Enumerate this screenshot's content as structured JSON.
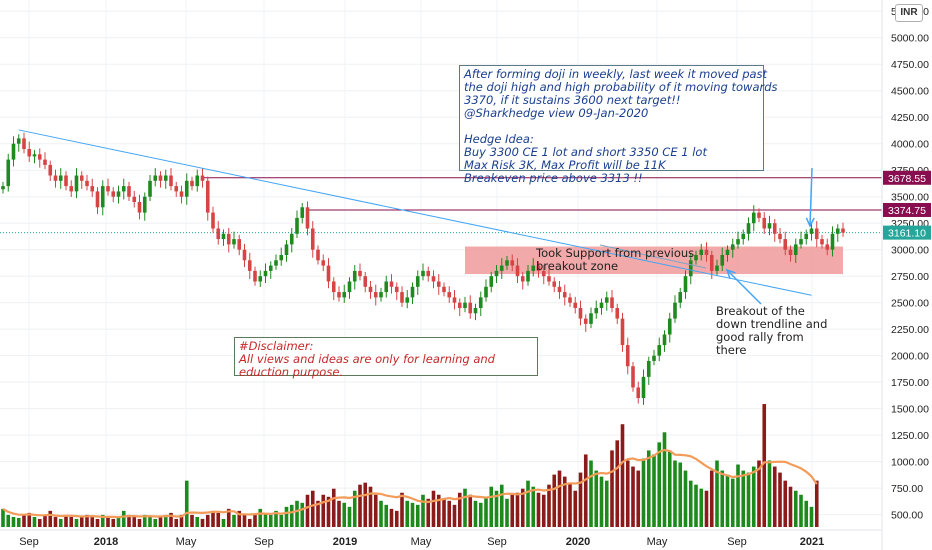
{
  "currency": "INR",
  "chart_data": {
    "type": "candlestick",
    "title": "",
    "xlabel": "",
    "ylabel": "",
    "ylim": [
      440,
      5290
    ],
    "volume_ylim": [
      500,
      1750
    ],
    "x_axis_labels": [
      "Sep",
      "2018",
      "May",
      "Sep",
      "2019",
      "May",
      "Sep",
      "2020",
      "May",
      "Sep",
      "2021"
    ],
    "y_ticks": [
      "500.00",
      "750.00",
      "1000.00",
      "1250.00",
      "1500.00",
      "1750.00",
      "2000.00",
      "2250.00",
      "2500.00",
      "2750.00",
      "3000.00",
      "3250.00",
      "3500.00",
      "3750.00",
      "4000.00",
      "4250.00",
      "4500.00",
      "4750.00",
      "5000.00",
      "5250.00"
    ],
    "price_labels": [
      {
        "value": 3678.55,
        "text": "3678.55",
        "color": "#880e4f"
      },
      {
        "value": 3374.75,
        "text": "3374.75",
        "color": "#880e4f"
      },
      {
        "value": 3161.1,
        "text": "3161.10",
        "color": "#26a69a"
      }
    ],
    "series": [
      {
        "name": "price",
        "close": [
          3600,
          3850,
          4000,
          4050,
          3950,
          3880,
          3900,
          3850,
          3800,
          3700,
          3650,
          3700,
          3600,
          3550,
          3700,
          3650,
          3600,
          3550,
          3400,
          3600,
          3550,
          3500,
          3550,
          3600,
          3500,
          3450,
          3350,
          3500,
          3650,
          3700,
          3650,
          3700,
          3600,
          3550,
          3500,
          3650,
          3600,
          3700,
          3650,
          3350,
          3200,
          3100,
          3150,
          3050,
          3100,
          3000,
          2900,
          2800,
          2700,
          2750,
          2800,
          2850,
          2900,
          2950,
          3050,
          3150,
          3300,
          3400,
          3200,
          3000,
          2900,
          2850,
          2700,
          2600,
          2550,
          2600,
          2700,
          2800,
          2750,
          2650,
          2600,
          2550,
          2600,
          2700,
          2650,
          2600,
          2500,
          2550,
          2650,
          2750,
          2800,
          2750,
          2700,
          2650,
          2600,
          2550,
          2500,
          2450,
          2500,
          2400,
          2450,
          2550,
          2650,
          2750,
          2800,
          2850,
          2900,
          2850,
          2750,
          2700,
          2800,
          2850,
          2800,
          2750,
          2700,
          2650,
          2600,
          2550,
          2500,
          2450,
          2350,
          2300,
          2400,
          2450,
          2500,
          2550,
          2450,
          2350,
          2100,
          1900,
          1700,
          1600,
          1800,
          1950,
          2000,
          2100,
          2200,
          2350,
          2500,
          2600,
          2750,
          2900,
          2950,
          3000,
          2950,
          2800,
          2850,
          2950,
          3000,
          3050,
          3100,
          3150,
          3250,
          3350,
          3300,
          3200,
          3250,
          3150,
          3100,
          3000,
          2950,
          3050,
          3100,
          3150,
          3200,
          3100,
          3050,
          3000,
          3150,
          3200,
          3161
        ],
        "description": "approximate weekly closes, estimated from the candlestick plot"
      },
      {
        "name": "volume",
        "values": [
          620,
          560,
          540,
          530,
          560,
          580,
          540,
          520,
          560,
          600,
          540,
          520,
          560,
          540,
          520,
          540,
          560,
          540,
          520,
          560,
          540,
          520,
          540,
          600,
          560,
          540,
          520,
          560,
          540,
          520,
          540,
          560,
          580,
          520,
          560,
          900,
          560,
          540,
          520,
          560,
          600,
          580,
          520,
          620,
          560,
          600,
          560,
          520,
          560,
          620,
          580,
          560,
          600,
          560,
          640,
          660,
          700,
          680,
          760,
          800,
          700,
          760,
          740,
          820,
          700,
          680,
          640,
          800,
          860,
          880,
          840,
          760,
          700,
          660,
          620,
          600,
          780,
          700,
          680,
          660,
          760,
          720,
          800,
          760,
          720,
          700,
          660,
          780,
          820,
          760,
          700,
          680,
          740,
          840,
          800,
          860,
          720,
          760,
          780,
          820,
          900,
          840,
          780,
          760,
          860,
          960,
          1000,
          940,
          880,
          800,
          980,
          1160,
          1100,
          1000,
          940,
          900,
          1200,
          1300,
          1460,
          1100,
          1040,
          1000,
          1120,
          1200,
          1160,
          1280,
          1380,
          1200,
          1100,
          1080,
          1000,
          900,
          860,
          820,
          800,
          1000,
          1100,
          1000,
          960,
          920,
          1060,
          1000,
          980,
          1040,
          1100,
          1660,
          1100,
          1040,
          980,
          900,
          840,
          800,
          760,
          700,
          640,
          900
        ],
        "description": "approximate weekly volume (thousands)"
      },
      {
        "name": "volume-ma",
        "description": "volume moving average, rises from ~560 to ~1050 then eases to ~960"
      }
    ],
    "lines": [
      {
        "type": "trendline",
        "from": {
          "week": 3,
          "price": 4130
        },
        "to": {
          "week": 154,
          "price": 2570
        },
        "color": "#42a5f5"
      },
      {
        "type": "horizontal",
        "price": 3678.55,
        "from_week": 38,
        "color": "#880e4f"
      },
      {
        "type": "horizontal",
        "price": 3374.75,
        "from_week": 58,
        "color": "#880e4f"
      }
    ],
    "zones": [
      {
        "label": "support-zone",
        "price_from": 2770,
        "price_to": 3030,
        "from_week": 88,
        "to_week": 160,
        "color": "#ef9a9a"
      }
    ]
  },
  "annotations": {
    "analysis": "After forming doji in weekly, last week it moved past\nthe doji high and high probability of it moving towards\n3370, if it sustains 3600 next target!!\n@Sharkhedge view 09-Jan-2020\n\nHedge Idea:\nBuy 3300 CE 1 lot and short 3350 CE 1 lot\nMax Risk 3K, Max Profit will be 11K\nBreakeven price above 3313 !!",
    "disclaimer_title": "#Disclaimer:",
    "disclaimer_body": "All views and ideas are only for learning and\neduction purpose.",
    "support_note": "Took Support from previous\nbreakout zone",
    "breakout_note": "Breakout of the\ndown trendline and\ngood rally from\nthere"
  },
  "colors": {
    "up": "#1f8a1f",
    "down": "#d64545",
    "volume_up": "#1e8a1e",
    "volume_down": "#8b1a1a",
    "volume_ma": "#f39c5a",
    "trendline": "#42a5f5",
    "level": "#880e4f",
    "current": "#26a69a",
    "analysis_text": "#1a3f8f",
    "disclaimer_text": "#c62828"
  }
}
